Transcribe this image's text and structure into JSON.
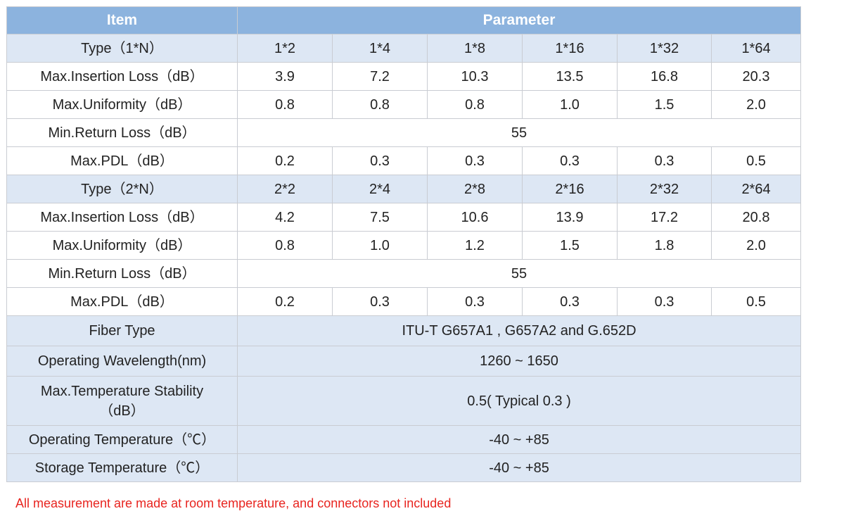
{
  "header": {
    "item_label": "Item",
    "parameter_label": "Parameter"
  },
  "group1": {
    "type_label": "Type（1*N）",
    "types": [
      "1*2",
      "1*4",
      "1*8",
      "1*16",
      "1*32",
      "1*64"
    ],
    "insertion_label": "Max.Insertion Loss（dB）",
    "insertion": [
      "3.9",
      "7.2",
      "10.3",
      "13.5",
      "16.8",
      "20.3"
    ],
    "uniformity_label": "Max.Uniformity（dB）",
    "uniformity": [
      "0.8",
      "0.8",
      "0.8",
      "1.0",
      "1.5",
      "2.0"
    ],
    "return_label": "Min.Return Loss（dB）",
    "return_value": "55",
    "pdl_label": "Max.PDL（dB）",
    "pdl": [
      "0.2",
      "0.3",
      "0.3",
      "0.3",
      "0.3",
      "0.5"
    ]
  },
  "group2": {
    "type_label": "Type（2*N）",
    "types": [
      "2*2",
      "2*4",
      "2*8",
      "2*16",
      "2*32",
      "2*64"
    ],
    "insertion_label": "Max.Insertion Loss（dB）",
    "insertion": [
      "4.2",
      "7.5",
      "10.6",
      "13.9",
      "17.2",
      "20.8"
    ],
    "uniformity_label": "Max.Uniformity（dB）",
    "uniformity": [
      "0.8",
      "1.0",
      "1.2",
      "1.5",
      "1.8",
      "2.0"
    ],
    "return_label": "Min.Return Loss（dB）",
    "return_value": "55",
    "pdl_label": "Max.PDL（dB）",
    "pdl": [
      "0.2",
      "0.3",
      "0.3",
      "0.3",
      "0.3",
      "0.5"
    ]
  },
  "common": {
    "fiber_label": "Fiber Type",
    "fiber_value": "ITU-T G657A1 , G657A2 and G.652D",
    "wavelength_label": "Operating Wavelength(nm)",
    "wavelength_value": "1260 ~ 1650",
    "stability_label_line1": "Max.Temperature Stability",
    "stability_label_line2": "（dB）",
    "stability_value": "0.5( Typical 0.3 )",
    "op_temp_label": "Operating Temperature（℃）",
    "op_temp_value": "-40 ~ +85",
    "storage_temp_label": "Storage Temperature（℃）",
    "storage_temp_value": "-40 ~ +85"
  },
  "note": "All measurement are made at room temperature, and connectors not included",
  "colors": {
    "header_bg": "#8cb3de",
    "shade_bg": "#dde7f4",
    "note_color": "#e8241f"
  }
}
